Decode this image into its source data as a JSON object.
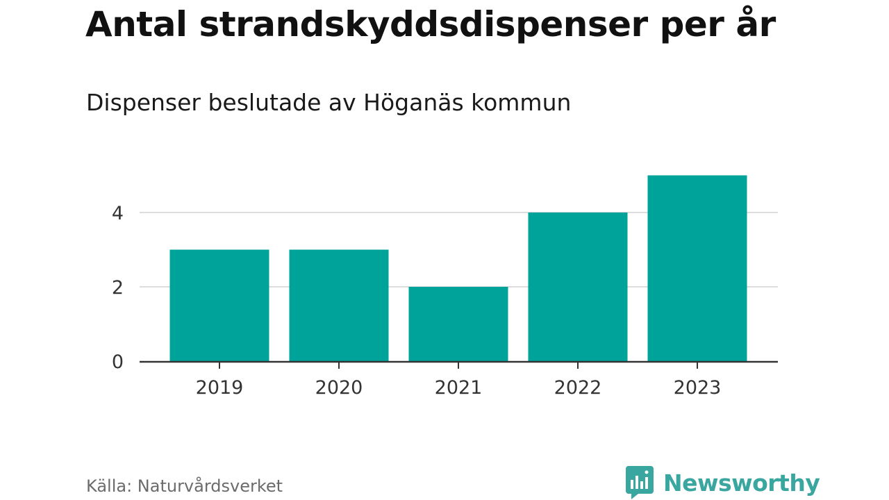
{
  "chart_data": {
    "type": "bar",
    "title": "Antal strandskyddsdispenser per år",
    "subtitle": "Dispenser beslutade av Höganäs kommun",
    "categories": [
      "2019",
      "2020",
      "2021",
      "2022",
      "2023"
    ],
    "values": [
      3,
      3,
      2,
      4,
      5
    ],
    "yticks": [
      0,
      2,
      4
    ],
    "ylim": [
      0,
      5
    ],
    "xlabel": "",
    "ylabel": "",
    "grid": true,
    "bar_color": "#00a39a",
    "source": "Källa: Naturvårdsverket"
  },
  "brand": {
    "name": "Newsworthy",
    "icon": "newsworthy-logo-icon",
    "color": "#3aa6a0"
  }
}
